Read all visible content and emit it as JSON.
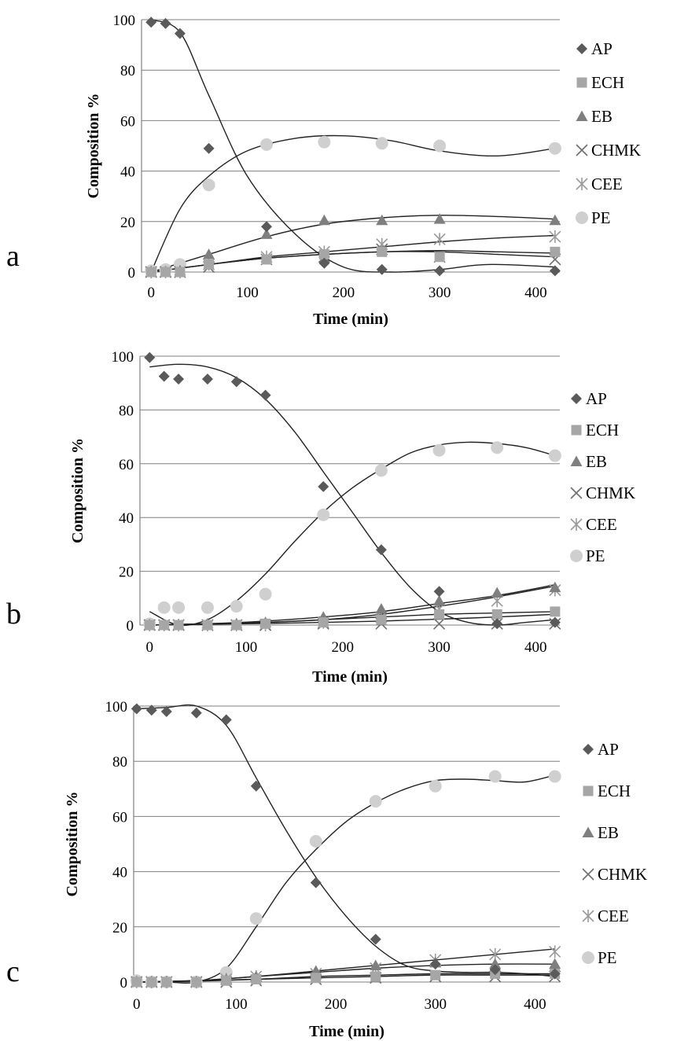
{
  "series_styles": [
    {
      "name": "AP",
      "marker": "diamond",
      "color": "#5a5a5a"
    },
    {
      "name": "ECH",
      "marker": "square",
      "color": "#a6a6a6"
    },
    {
      "name": "EB",
      "marker": "triangle",
      "color": "#7f7f7f"
    },
    {
      "name": "CHMK",
      "marker": "x",
      "color": "#6e6e6e"
    },
    {
      "name": "CEE",
      "marker": "asterisk",
      "color": "#9a9a9a"
    },
    {
      "name": "PE",
      "marker": "circle",
      "color": "#cfcfcf"
    }
  ],
  "chart_data": [
    {
      "type": "scatter",
      "panel_label": "a",
      "xlabel": "Time (min)",
      "ylabel": "Composition %",
      "xlim": [
        -10,
        425
      ],
      "ylim": [
        0,
        100
      ],
      "xticks": [
        0,
        100,
        200,
        300,
        400
      ],
      "yticks": [
        0,
        20,
        40,
        60,
        80,
        100
      ],
      "grid": "horizontal",
      "legend_position": "right",
      "series": [
        {
          "name": "AP",
          "x": [
            0,
            15,
            30,
            60,
            120,
            180,
            240,
            300,
            420
          ],
          "y": [
            99,
            98.5,
            94.5,
            49,
            18,
            3.5,
            1,
            0.5,
            0.5
          ]
        },
        {
          "name": "ECH",
          "x": [
            0,
            15,
            30,
            60,
            120,
            180,
            240,
            300,
            420
          ],
          "y": [
            0,
            0,
            0,
            3,
            5,
            7,
            8,
            6,
            8
          ]
        },
        {
          "name": "EB",
          "x": [
            0,
            15,
            30,
            60,
            120,
            180,
            240,
            300,
            420
          ],
          "y": [
            0,
            0,
            0.5,
            7,
            15,
            20.5,
            20.5,
            21,
            20.5
          ]
        },
        {
          "name": "CHMK",
          "x": [
            0,
            15,
            30,
            60,
            120,
            180,
            240,
            300,
            420
          ],
          "y": [
            0,
            0,
            0,
            2,
            5,
            6,
            9,
            6,
            5
          ]
        },
        {
          "name": "CEE",
          "x": [
            0,
            15,
            30,
            60,
            120,
            180,
            240,
            300,
            420
          ],
          "y": [
            0,
            0,
            0,
            3,
            6,
            8,
            11,
            13,
            14
          ]
        },
        {
          "name": "PE",
          "x": [
            0,
            15,
            30,
            60,
            120,
            180,
            240,
            300,
            420
          ],
          "y": [
            0.5,
            1,
            3,
            34.5,
            50.5,
            51.5,
            51,
            50,
            49
          ]
        }
      ],
      "trendlines": [
        {
          "series": "AP",
          "x": [
            0,
            30,
            60,
            100,
            150,
            200,
            250,
            300,
            350,
            420
          ],
          "y": [
            100,
            95,
            70,
            38,
            15,
            2,
            0,
            1,
            3,
            2
          ]
        },
        {
          "series": "PE",
          "x": [
            0,
            30,
            60,
            100,
            150,
            200,
            250,
            300,
            360,
            420
          ],
          "y": [
            0,
            25,
            38,
            48,
            53,
            54,
            52,
            48,
            46,
            49
          ]
        },
        {
          "series": "EB",
          "x": [
            0,
            60,
            120,
            180,
            240,
            300,
            360,
            420
          ],
          "y": [
            0,
            7,
            14,
            19,
            21.5,
            22.5,
            22,
            21
          ]
        },
        {
          "series": "CEE",
          "x": [
            0,
            60,
            120,
            180,
            240,
            300,
            360,
            420
          ],
          "y": [
            0,
            3,
            6,
            8,
            10,
            12,
            13.5,
            14.5
          ]
        },
        {
          "series": "ECH",
          "x": [
            0,
            60,
            120,
            180,
            240,
            300,
            360,
            420
          ],
          "y": [
            0,
            3,
            5.5,
            7,
            8,
            8.5,
            8,
            7.5
          ]
        },
        {
          "series": "CHMK",
          "x": [
            0,
            60,
            120,
            180,
            240,
            300,
            360,
            420
          ],
          "y": [
            0,
            3,
            5.5,
            7,
            8,
            8,
            7,
            6
          ]
        }
      ]
    },
    {
      "type": "scatter",
      "panel_label": "b",
      "xlabel": "Time (min)",
      "ylabel": "Composition %",
      "xlim": [
        -10,
        425
      ],
      "ylim": [
        0,
        100
      ],
      "xticks": [
        0,
        100,
        200,
        300,
        400
      ],
      "yticks": [
        0,
        20,
        40,
        60,
        80,
        100
      ],
      "grid": "horizontal",
      "legend_position": "right",
      "series": [
        {
          "name": "AP",
          "x": [
            0,
            15,
            30,
            60,
            90,
            120,
            180,
            240,
            300,
            360,
            420
          ],
          "y": [
            99.5,
            92.5,
            91.5,
            91.5,
            90.5,
            85.5,
            51.5,
            28,
            12.5,
            0.5,
            1
          ]
        },
        {
          "name": "ECH",
          "x": [
            0,
            15,
            30,
            60,
            90,
            120,
            180,
            240,
            300,
            360,
            420
          ],
          "y": [
            0,
            0,
            0,
            0,
            0,
            0.5,
            1,
            2,
            4,
            4,
            5
          ]
        },
        {
          "name": "EB",
          "x": [
            0,
            15,
            30,
            60,
            90,
            120,
            180,
            240,
            300,
            360,
            420
          ],
          "y": [
            0,
            0,
            0,
            0.5,
            0.5,
            1,
            3,
            6,
            9,
            12,
            14
          ]
        },
        {
          "name": "CHMK",
          "x": [
            0,
            15,
            30,
            60,
            90,
            120,
            180,
            240,
            300,
            360,
            420
          ],
          "y": [
            0,
            0,
            0,
            0,
            0,
            0,
            0.5,
            0.5,
            0.5,
            0.5,
            0.5
          ]
        },
        {
          "name": "CEE",
          "x": [
            0,
            15,
            30,
            60,
            90,
            120,
            180,
            240,
            300,
            360,
            420
          ],
          "y": [
            0,
            0,
            0,
            0,
            0,
            0,
            1,
            3,
            6,
            9,
            13
          ]
        },
        {
          "name": "PE",
          "x": [
            0,
            15,
            30,
            60,
            90,
            120,
            180,
            240,
            300,
            360,
            420
          ],
          "y": [
            0.5,
            6.5,
            6.5,
            6.5,
            7,
            11.5,
            41,
            57.5,
            65,
            66,
            63
          ]
        }
      ],
      "trendlines": [
        {
          "series": "AP",
          "x": [
            0,
            30,
            60,
            90,
            120,
            150,
            180,
            210,
            240,
            270,
            300,
            330,
            360,
            390,
            420
          ],
          "y": [
            96,
            97,
            96,
            92,
            84,
            72,
            57,
            42,
            27,
            14,
            5,
            1,
            0,
            1,
            2
          ]
        },
        {
          "series": "PE",
          "x": [
            0,
            30,
            60,
            90,
            120,
            150,
            180,
            210,
            240,
            270,
            300,
            330,
            360,
            390,
            420
          ],
          "y": [
            5,
            0,
            2,
            9,
            19,
            31,
            42,
            51,
            58,
            64,
            67,
            68,
            67.5,
            66,
            63
          ]
        },
        {
          "series": "EB",
          "x": [
            0,
            60,
            120,
            180,
            240,
            300,
            360,
            420
          ],
          "y": [
            0,
            0.5,
            1.5,
            3,
            5,
            8,
            11,
            15
          ]
        },
        {
          "series": "CEE",
          "x": [
            0,
            60,
            120,
            180,
            240,
            300,
            360,
            420
          ],
          "y": [
            0,
            0.5,
            1,
            2,
            4,
            7,
            10.5,
            14.5
          ]
        },
        {
          "series": "ECH",
          "x": [
            0,
            60,
            120,
            180,
            240,
            300,
            360,
            420
          ],
          "y": [
            0,
            0.5,
            1,
            2,
            3,
            4,
            4.5,
            5
          ]
        },
        {
          "series": "CHMK",
          "x": [
            0,
            60,
            120,
            180,
            240,
            300,
            360,
            420
          ],
          "y": [
            0,
            0.3,
            0.6,
            1,
            1.5,
            2.2,
            3,
            4
          ]
        }
      ]
    },
    {
      "type": "scatter",
      "panel_label": "c",
      "xlabel": "Time (min)",
      "ylabel": "Composition %",
      "xlim": [
        -3,
        425
      ],
      "ylim": [
        0,
        100
      ],
      "xticks": [
        0,
        100,
        200,
        300,
        400
      ],
      "yticks": [
        0,
        20,
        40,
        60,
        80,
        100
      ],
      "grid": "horizontal",
      "legend_position": "right",
      "series": [
        {
          "name": "AP",
          "x": [
            0,
            15,
            30,
            60,
            90,
            120,
            180,
            240,
            300,
            360,
            420
          ],
          "y": [
            99,
            98.5,
            98,
            97.5,
            95,
            71,
            36,
            15.5,
            6.5,
            4.5,
            3
          ]
        },
        {
          "name": "ECH",
          "x": [
            0,
            15,
            30,
            60,
            90,
            120,
            180,
            240,
            300,
            360,
            420
          ],
          "y": [
            0,
            0,
            0,
            0,
            0.5,
            1,
            1.5,
            2,
            2.5,
            3,
            3
          ]
        },
        {
          "name": "EB",
          "x": [
            0,
            15,
            30,
            60,
            90,
            120,
            180,
            240,
            300,
            360,
            420
          ],
          "y": [
            0,
            0,
            0,
            0,
            1,
            2,
            4,
            6,
            7,
            6.5,
            6.5
          ]
        },
        {
          "name": "CHMK",
          "x": [
            0,
            15,
            30,
            60,
            90,
            120,
            180,
            240,
            300,
            360,
            420
          ],
          "y": [
            0,
            0,
            0,
            0,
            0,
            0.5,
            1,
            1.5,
            2,
            2,
            2
          ]
        },
        {
          "name": "CEE",
          "x": [
            0,
            15,
            30,
            60,
            90,
            120,
            180,
            240,
            300,
            360,
            420
          ],
          "y": [
            0,
            0,
            0,
            0,
            1,
            2,
            3,
            5,
            8,
            10,
            11
          ]
        },
        {
          "name": "PE",
          "x": [
            0,
            15,
            30,
            60,
            90,
            120,
            180,
            240,
            300,
            360,
            420
          ],
          "y": [
            0.5,
            0,
            0,
            0,
            3.5,
            23,
            51,
            65.5,
            71,
            74.5,
            74.5
          ]
        }
      ],
      "trendlines": [
        {
          "series": "AP",
          "x": [
            0,
            30,
            60,
            90,
            120,
            150,
            180,
            210,
            240,
            270,
            300,
            330,
            360,
            390,
            420
          ],
          "y": [
            99,
            99.5,
            100,
            93,
            74,
            55,
            38,
            24,
            13,
            6,
            4,
            3.5,
            3.5,
            3,
            2
          ]
        },
        {
          "series": "PE",
          "x": [
            0,
            30,
            60,
            90,
            120,
            150,
            180,
            210,
            240,
            270,
            300,
            330,
            360,
            390,
            420
          ],
          "y": [
            0,
            0,
            0,
            5,
            20,
            36,
            48,
            58,
            65,
            70,
            73,
            73.5,
            73,
            72.5,
            75
          ]
        },
        {
          "series": "CEE",
          "x": [
            0,
            60,
            120,
            180,
            240,
            300,
            360,
            420
          ],
          "y": [
            0,
            0.5,
            2,
            4,
            6,
            8,
            10,
            12
          ]
        },
        {
          "series": "EB",
          "x": [
            0,
            60,
            120,
            180,
            240,
            300,
            360,
            420
          ],
          "y": [
            0,
            0.5,
            2,
            3.5,
            5,
            6,
            6.5,
            6.5
          ]
        },
        {
          "series": "ECH",
          "x": [
            0,
            60,
            120,
            180,
            240,
            300,
            360,
            420
          ],
          "y": [
            0,
            0.5,
            1,
            2,
            2.5,
            3,
            3,
            3
          ]
        },
        {
          "series": "CHMK",
          "x": [
            0,
            60,
            120,
            180,
            240,
            300,
            360,
            420
          ],
          "y": [
            0,
            0.3,
            1,
            1.5,
            2,
            2.5,
            2.5,
            2.5
          ]
        }
      ]
    }
  ]
}
